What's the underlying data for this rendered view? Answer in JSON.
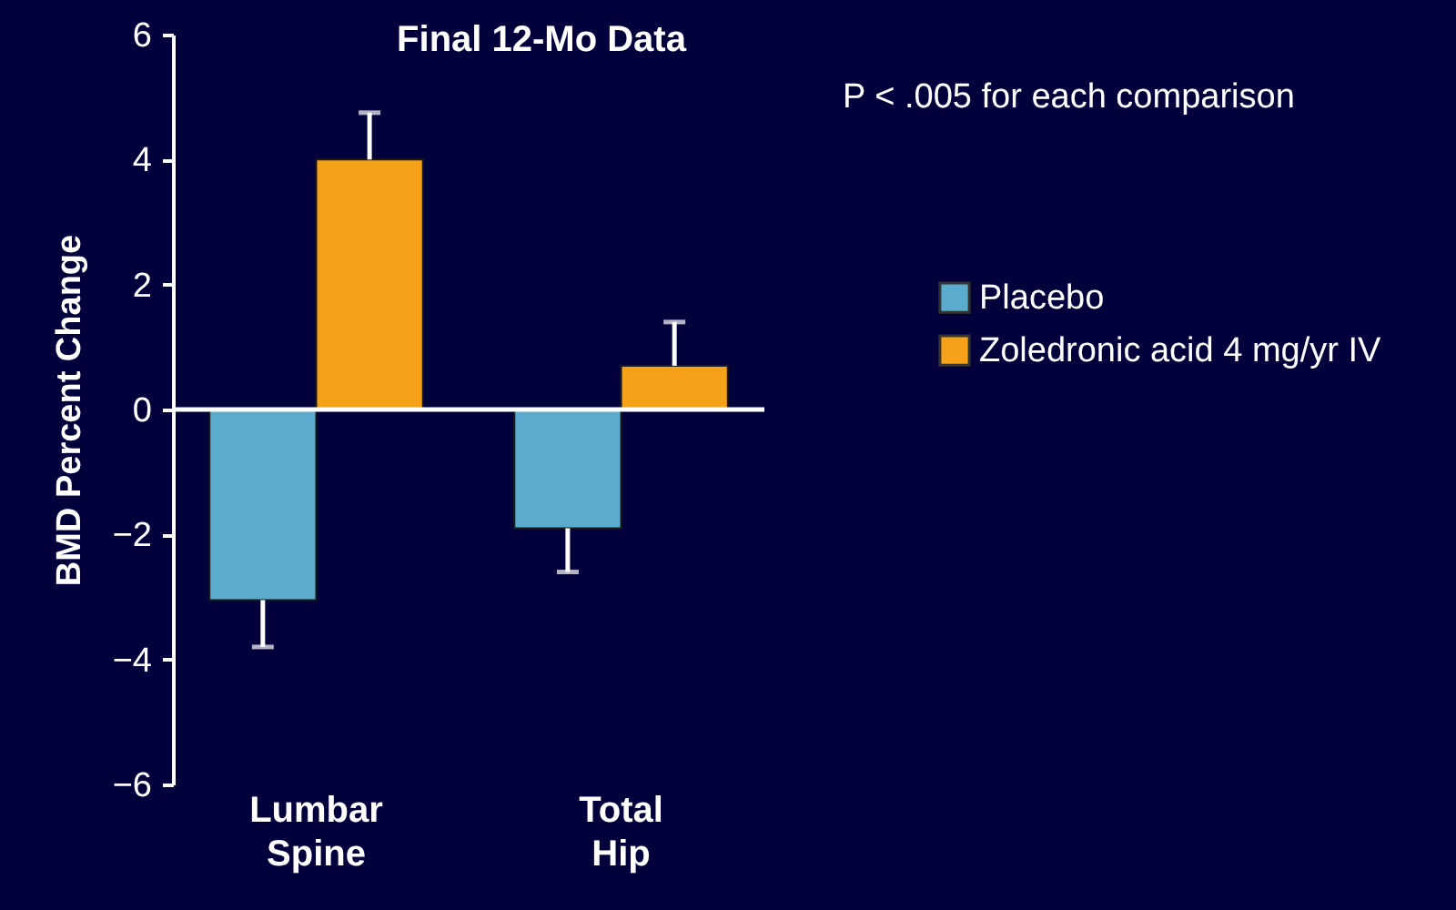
{
  "chart_data": {
    "type": "bar",
    "title": "Final 12-Mo Data",
    "ylabel": "BMD Percent Change",
    "categories": [
      "Lumbar Spine",
      "Total Hip"
    ],
    "series": [
      {
        "name": "Placebo",
        "color": "#5aabcd",
        "values": [
          -3.05,
          -1.9
        ],
        "errors": [
          [
            -3.8,
            -3.05
          ],
          [
            -2.6,
            -1.9
          ]
        ]
      },
      {
        "name": "Zoledronic acid 4 mg/yr IV",
        "color": "#f5a11a",
        "values": [
          4.0,
          0.7
        ],
        "errors": [
          [
            4.0,
            4.75
          ],
          [
            0.7,
            1.4
          ]
        ]
      }
    ],
    "ylim": [
      -6,
      6
    ],
    "yticks": [
      -6,
      -4,
      -2,
      0,
      2,
      4,
      6
    ],
    "ref_lines": [
      {
        "axis": "y",
        "value": 0,
        "color": "#ffffff"
      }
    ],
    "annotations": [
      "P < .005 for each comparison"
    ],
    "legend": "right",
    "grid": false
  }
}
